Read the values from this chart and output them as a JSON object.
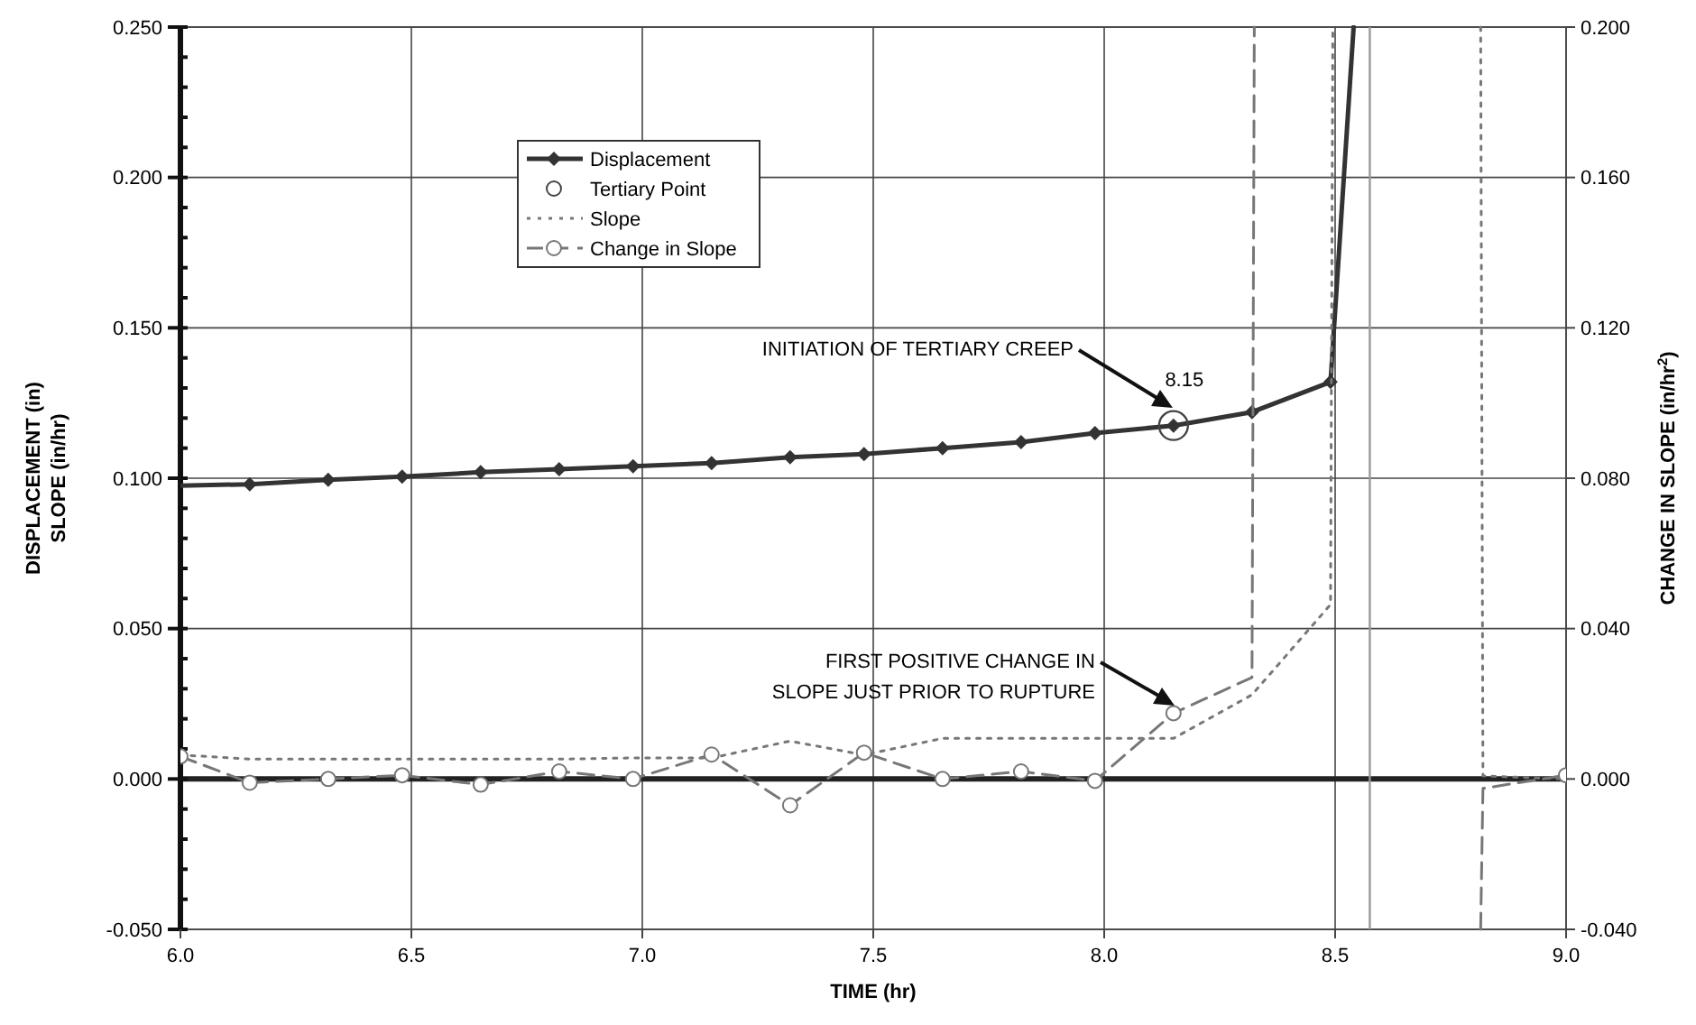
{
  "chart_data": {
    "type": "line",
    "xlabel": "TIME (hr)",
    "ylabel": "DISPLACEMENT (in)\nSLOPE (in/hr)",
    "y2label": "CHANGE IN SLOPE (in/hr$^{2}$)",
    "xlim": [
      6.0,
      9.0
    ],
    "xticks": [
      {
        "value": 6.0,
        "label": "6.0"
      },
      {
        "value": 6.5,
        "label": "6.5"
      },
      {
        "value": 7.0,
        "label": "7.0"
      },
      {
        "value": 7.5,
        "label": "7.5"
      },
      {
        "value": 8.0,
        "label": "8.0"
      },
      {
        "value": 8.5,
        "label": "8.5"
      },
      {
        "value": 9.0,
        "label": "9.0"
      }
    ],
    "ylim": [
      -0.05,
      0.25
    ],
    "yticks": [
      {
        "value": -0.05,
        "label": "-0.050"
      },
      {
        "value": -0.04,
        "label": null
      },
      {
        "value": -0.03,
        "label": null
      },
      {
        "value": -0.02,
        "label": null
      },
      {
        "value": -0.01,
        "label": null
      },
      {
        "value": 0,
        "label": "0.000"
      },
      {
        "value": 0.01,
        "label": null
      },
      {
        "value": 0.02,
        "label": null
      },
      {
        "value": 0.03,
        "label": null
      },
      {
        "value": 0.04,
        "label": null
      },
      {
        "value": 0.05,
        "label": "0.050"
      },
      {
        "value": 0.06,
        "label": null
      },
      {
        "value": 0.07,
        "label": null
      },
      {
        "value": 0.08,
        "label": null
      },
      {
        "value": 0.09,
        "label": null
      },
      {
        "value": 0.1,
        "label": "0.100"
      },
      {
        "value": 0.11,
        "label": null
      },
      {
        "value": 0.12,
        "label": null
      },
      {
        "value": 0.13,
        "label": null
      },
      {
        "value": 0.14,
        "label": null
      },
      {
        "value": 0.15,
        "label": "0.150"
      },
      {
        "value": 0.16,
        "label": null
      },
      {
        "value": 0.17,
        "label": null
      },
      {
        "value": 0.18,
        "label": null
      },
      {
        "value": 0.19,
        "label": null
      },
      {
        "value": 0.2,
        "label": "0.200"
      },
      {
        "value": 0.21,
        "label": null
      },
      {
        "value": 0.22,
        "label": null
      },
      {
        "value": 0.23,
        "label": null
      },
      {
        "value": 0.24,
        "label": null
      },
      {
        "value": 0.25,
        "label": "0.250"
      }
    ],
    "y2lim": [
      -0.04,
      0.2
    ],
    "y2ticks": [
      {
        "value": -0.04,
        "label": "-0.040"
      },
      {
        "value": 0,
        "label": "0.000"
      },
      {
        "value": 0.04,
        "label": "0.040"
      },
      {
        "value": 0.08,
        "label": "0.080"
      },
      {
        "value": 0.12,
        "label": "0.120"
      },
      {
        "value": 0.16,
        "label": "0.160"
      },
      {
        "value": 0.2,
        "label": "0.200"
      }
    ],
    "grid": true,
    "legend": "top left",
    "series": [
      {
        "name": "Displacement",
        "type": "line",
        "color": "#333333",
        "marker": "diamond",
        "line_style": "solid",
        "x": [
          6.0,
          6.15,
          6.32,
          6.48,
          6.65,
          6.82,
          6.98,
          7.15,
          7.32,
          7.48,
          7.65,
          7.82,
          7.98,
          8.15,
          8.32,
          8.49,
          8.54
        ],
        "values": [
          0.0975,
          0.098,
          0.0995,
          0.1005,
          0.102,
          0.103,
          0.104,
          0.105,
          0.107,
          0.108,
          0.11,
          0.112,
          0.115,
          0.1175,
          0.122,
          0.132,
          0.25
        ]
      },
      {
        "name": "Tertiary Point",
        "type": "scatter",
        "color": "#444444",
        "marker": "circle",
        "x": [
          8.15
        ],
        "values": [
          0.1175
        ]
      },
      {
        "name": "Slope",
        "type": "line",
        "color": "#777777",
        "marker": "none",
        "line_style": "dotted",
        "x": [
          6.0,
          6.15,
          6.32,
          6.48,
          6.65,
          6.82,
          6.98,
          7.15,
          7.32,
          7.48,
          7.65,
          7.82,
          7.98,
          8.15,
          8.32,
          8.49,
          8.495,
          8.65,
          8.815,
          8.82,
          9.0
        ],
        "values": [
          0.008,
          0.0066,
          0.0066,
          0.0066,
          0.0066,
          0.0066,
          0.007,
          0.007,
          0.0126,
          0.008,
          0.0135,
          0.0135,
          0.0135,
          0.0135,
          0.028,
          0.058,
          0.25,
          null,
          0.25,
          0.001,
          0.0
        ]
      },
      {
        "name": "Change in Slope",
        "type": "line",
        "axis": "y2",
        "color": "#777777",
        "marker": "circle",
        "line_style": "dashed",
        "x": [
          6.0,
          6.15,
          6.32,
          6.48,
          6.65,
          6.82,
          6.98,
          7.15,
          7.32,
          7.48,
          7.65,
          7.82,
          7.98,
          8.15,
          8.32,
          8.325,
          8.6,
          8.815,
          8.82,
          9.0
        ],
        "values": [
          0.006,
          -0.001,
          0.0,
          0.001,
          -0.0015,
          0.002,
          0.0,
          0.0065,
          -0.007,
          0.007,
          0.0,
          0.002,
          -0.0005,
          0.0175,
          0.027,
          0.2,
          null,
          -0.04,
          -0.0025,
          0.001
        ]
      }
    ],
    "ref_lines": [
      {
        "axis": "y",
        "value": 0,
        "color": "#222222"
      },
      {
        "axis": "x",
        "value": 8.575,
        "color": "#999999"
      }
    ],
    "annotations": [
      "INITIATION OF TERTIARY CREEP",
      {
        "text": "8.15",
        "x": 8.15,
        "y": 0.1175
      },
      "FIRST POSITIVE CHANGE IN\nSLOPE JUST PRIOR TO RUPTURE"
    ]
  }
}
